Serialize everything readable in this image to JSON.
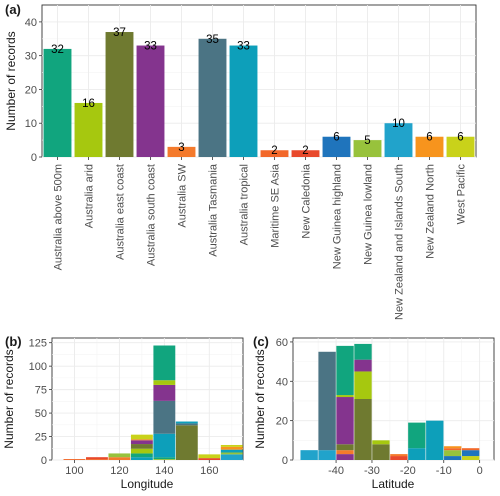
{
  "panels": {
    "a": "(a)",
    "b": "(b)",
    "c": "(c)"
  },
  "chart_data": [
    {
      "type": "bar",
      "panel": "a",
      "ylabel": "Number of records",
      "xlabel": "",
      "ylim": [
        0,
        45
      ],
      "yticks": [
        0,
        10,
        20,
        30,
        40
      ],
      "grid": true,
      "categories": [
        "Australia above 500m",
        "Australia arid",
        "Australia east coast",
        "Australia south coast",
        "Australia SW",
        "Australia Tasmania",
        "Australia tropical",
        "Maritime SE Asia",
        "New Caledonia",
        "New Guinea highland",
        "New Guinea lowland",
        "New Zealand and Islands South",
        "New Zealand North",
        "West Pacific"
      ],
      "values": [
        32,
        16,
        37,
        33,
        3,
        35,
        33,
        2,
        2,
        6,
        5,
        10,
        6,
        6
      ],
      "colors": [
        "#11a57e",
        "#a6c80f",
        "#6f7a30",
        "#84348e",
        "#f47a2c",
        "#4b7484",
        "#0d9fba",
        "#f2682a",
        "#e8492c",
        "#1f74bc",
        "#98c23c",
        "#21a3cb",
        "#f7941d",
        "#c9d21a"
      ]
    },
    {
      "type": "bar",
      "stacked": true,
      "panel": "b",
      "xlabel": "Longitude",
      "ylabel": "Number of records",
      "xlim": [
        90,
        175
      ],
      "ylim": [
        0,
        130
      ],
      "xticks": [
        100,
        120,
        140,
        160
      ],
      "yticks": [
        0,
        25,
        50,
        75,
        100,
        125
      ],
      "grid": true,
      "bins": [
        {
          "x0": 95,
          "x1": 105,
          "stack": [
            {
              "series": "Maritime SE Asia",
              "value": 1
            }
          ]
        },
        {
          "x0": 105,
          "x1": 115,
          "stack": [
            {
              "series": "Maritime SE Asia",
              "value": 1
            },
            {
              "series": "New Caledonia",
              "value": 2
            }
          ]
        },
        {
          "x0": 115,
          "x1": 125,
          "stack": [
            {
              "series": "Australia SW",
              "value": 3
            },
            {
              "series": "New Guinea lowland",
              "value": 4
            }
          ]
        },
        {
          "x0": 125,
          "x1": 135,
          "stack": [
            {
              "series": "Australia tropical",
              "value": 3
            },
            {
              "series": "Australia above 500m",
              "value": 4
            },
            {
              "series": "Australia arid",
              "value": 5
            },
            {
              "series": "Australia east coast",
              "value": 5
            },
            {
              "series": "Australia south coast",
              "value": 4
            },
            {
              "series": "Australia SW",
              "value": 1
            },
            {
              "series": "West Pacific",
              "value": 5
            }
          ]
        },
        {
          "x0": 135,
          "x1": 145,
          "stack": [
            {
              "series": "New Guinea lowland",
              "value": 1
            },
            {
              "series": "Australia above 500m",
              "value": 2
            },
            {
              "series": "Australia tropical",
              "value": 25
            },
            {
              "series": "Australia Tasmania",
              "value": 35
            },
            {
              "series": "Australia south coast",
              "value": 17
            },
            {
              "series": "Australia arid",
              "value": 5
            },
            {
              "series": "Australia above 500m",
              "value": 37
            }
          ]
        },
        {
          "x0": 145,
          "x1": 155,
          "stack": [
            {
              "series": "Australia east coast",
              "value": 37
            },
            {
              "series": "Australia Tasmania",
              "value": 2
            },
            {
              "series": "Australia tropical",
              "value": 2
            }
          ]
        },
        {
          "x0": 155,
          "x1": 165,
          "stack": [
            {
              "series": "New Caledonia",
              "value": 2
            },
            {
              "series": "West Pacific",
              "value": 4
            }
          ]
        },
        {
          "x0": 165,
          "x1": 175,
          "stack": [
            {
              "series": "New Zealand and Islands South",
              "value": 6
            },
            {
              "series": "New Guinea lowland",
              "value": 2
            },
            {
              "series": "Australia tropical",
              "value": 3
            },
            {
              "series": "New Zealand North",
              "value": 3
            },
            {
              "series": "West Pacific",
              "value": 2
            }
          ]
        }
      ]
    },
    {
      "type": "bar",
      "stacked": true,
      "panel": "c",
      "xlabel": "Latitude",
      "ylabel": "Number of records",
      "xlim": [
        -52,
        4
      ],
      "ylim": [
        0,
        62
      ],
      "xticks": [
        -40,
        -30,
        -20,
        -10,
        0
      ],
      "yticks": [
        0,
        20,
        40,
        60
      ],
      "grid": true,
      "bins": [
        {
          "x0": -50,
          "x1": -45,
          "stack": [
            {
              "series": "New Zealand and Islands South",
              "value": 5
            }
          ]
        },
        {
          "x0": -45,
          "x1": -40,
          "stack": [
            {
              "series": "New Zealand and Islands South",
              "value": 5
            },
            {
              "series": "Australia Tasmania",
              "value": 50
            }
          ]
        },
        {
          "x0": -40,
          "x1": -35,
          "stack": [
            {
              "series": "Australia south coast",
              "value": 3
            },
            {
              "series": "Australia SW",
              "value": 2
            },
            {
              "series": "Australia east coast",
              "value": 3
            },
            {
              "series": "Australia south coast",
              "value": 24
            },
            {
              "series": "Australia arid",
              "value": 1
            },
            {
              "series": "Australia above 500m",
              "value": 25
            }
          ]
        },
        {
          "x0": -35,
          "x1": -30,
          "stack": [
            {
              "series": "Australia east coast",
              "value": 31
            },
            {
              "series": "Australia arid",
              "value": 14
            },
            {
              "series": "Australia south coast",
              "value": 6
            },
            {
              "series": "Australia above 500m",
              "value": 8
            }
          ]
        },
        {
          "x0": -30,
          "x1": -25,
          "stack": [
            {
              "series": "Australia east coast",
              "value": 8
            },
            {
              "series": "Australia arid",
              "value": 2
            }
          ]
        },
        {
          "x0": -25,
          "x1": -20,
          "stack": [
            {
              "series": "New Caledonia",
              "value": 2
            },
            {
              "series": "Australia SW",
              "value": 1
            }
          ]
        },
        {
          "x0": -20,
          "x1": -15,
          "stack": [
            {
              "series": "Australia tropical",
              "value": 6
            },
            {
              "series": "Australia above 500m",
              "value": 13
            }
          ]
        },
        {
          "x0": -15,
          "x1": -10,
          "stack": [
            {
              "series": "Australia tropical",
              "value": 20
            }
          ]
        },
        {
          "x0": -10,
          "x1": -5,
          "stack": [
            {
              "series": "New Guinea highland",
              "value": 2
            },
            {
              "series": "New Guinea lowland",
              "value": 3
            },
            {
              "series": "Maritime SE Asia",
              "value": 1
            },
            {
              "series": "New Zealand North",
              "value": 1
            }
          ]
        },
        {
          "x0": -5,
          "x1": 0,
          "stack": [
            {
              "series": "West Pacific",
              "value": 2
            },
            {
              "series": "New Guinea highland",
              "value": 3
            },
            {
              "series": "Maritime SE Asia",
              "value": 1
            }
          ]
        }
      ]
    }
  ]
}
